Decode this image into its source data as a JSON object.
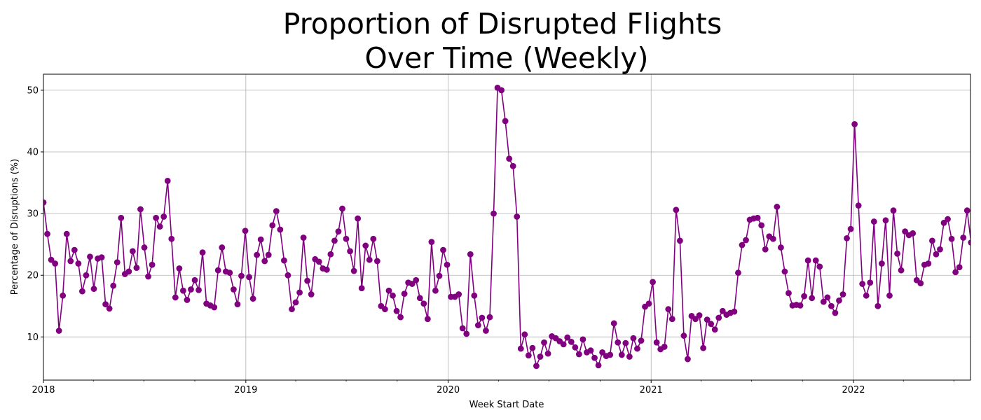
{
  "chart_data": {
    "type": "line",
    "title_lines": [
      "Proportion of Disrupted Flights",
      "Over Time (Weekly)"
    ],
    "xlabel": "Week Start Date",
    "ylabel": "Percentage of Disruptions (%)",
    "x_start": "2018-01-01",
    "x_end": "2022-07-31",
    "x_major_ticks": [
      {
        "date": "2018-01-01",
        "label": "2018"
      },
      {
        "date": "2019-01-01",
        "label": "2019"
      },
      {
        "date": "2020-01-01",
        "label": "2020"
      },
      {
        "date": "2021-01-01",
        "label": "2021"
      },
      {
        "date": "2022-01-01",
        "label": "2022"
      }
    ],
    "x_minor_ticks": [
      "2018-04-01",
      "2018-07-01",
      "2018-10-01",
      "2019-04-01",
      "2019-07-01",
      "2019-10-01",
      "2020-04-01",
      "2020-07-01",
      "2020-10-01",
      "2021-04-01",
      "2021-07-01",
      "2021-10-01",
      "2022-04-01",
      "2022-07-01"
    ],
    "ylim": [
      3.0,
      52.6
    ],
    "yticks": [
      10,
      20,
      30,
      40,
      50
    ],
    "grid": true,
    "line_color": "#800080",
    "marker": "circle",
    "series": [
      {
        "start": "2018-01-01",
        "interval_days": 7,
        "values": [
          31.8,
          26.7,
          22.5,
          21.9,
          11.0,
          16.7,
          26.7,
          22.3,
          24.1,
          21.9,
          17.4,
          20.0,
          23.0,
          17.8,
          22.7,
          22.9,
          15.3,
          14.6,
          18.3,
          22.1,
          29.3,
          20.2,
          20.6,
          23.9,
          21.2,
          30.7,
          24.5,
          19.8,
          21.7,
          29.3,
          27.9,
          29.5,
          35.3,
          25.9,
          16.4,
          21.1,
          17.5,
          16.0,
          17.7,
          19.2,
          17.6,
          23.7,
          15.4,
          15.1,
          14.8,
          20.8,
          24.5,
          20.6,
          20.4,
          17.7,
          15.3,
          19.9,
          27.2,
          19.7,
          16.2,
          23.3,
          25.8,
          22.3,
          23.3,
          28.1,
          30.4,
          27.4,
          22.4,
          20.0,
          14.5,
          15.6,
          17.2,
          26.1,
          19.1,
          16.9,
          22.6,
          22.2,
          21.1,
          20.9,
          23.4,
          25.6,
          27.1,
          30.8,
          25.9,
          23.9,
          20.7,
          29.2,
          17.9,
          24.8,
          22.5,
          25.9,
          22.3,
          15.0,
          14.5,
          17.5,
          16.7,
          14.2,
          13.2,
          17.0,
          18.8,
          18.6,
          19.2,
          16.3,
          15.4,
          12.9,
          25.4,
          17.5,
          19.9,
          24.1,
          21.7,
          16.5,
          16.5,
          16.9,
          11.4,
          10.5,
          23.4,
          16.7,
          11.9,
          13.1,
          11.0,
          13.2,
          30.0,
          50.4,
          50.0,
          45.0,
          38.9,
          37.7,
          29.5,
          8.1,
          10.4,
          7.0,
          8.2,
          5.3,
          6.8,
          9.1,
          7.3,
          10.1,
          9.8,
          9.3,
          8.8,
          9.9,
          9.2,
          8.3,
          7.2,
          9.6,
          7.5,
          7.8,
          6.6,
          5.4,
          7.5,
          6.9,
          7.1,
          12.2,
          9.1,
          7.1,
          9.0,
          6.8,
          9.8,
          8.1,
          9.4,
          14.9,
          15.4,
          18.9,
          9.1,
          8.0,
          8.4,
          14.5,
          12.9,
          30.6,
          25.6,
          10.2,
          6.4,
          13.4,
          12.9,
          13.5,
          8.2,
          12.8,
          12.1,
          11.2,
          13.1,
          14.2,
          13.6,
          13.9,
          14.1,
          20.4,
          24.9,
          25.7,
          29.0,
          29.2,
          29.3,
          28.1,
          24.2,
          26.3,
          25.9,
          31.1,
          24.5,
          20.6,
          17.1,
          15.1,
          15.2,
          15.1,
          16.6,
          22.4,
          16.3,
          22.4,
          21.4,
          15.7,
          16.4,
          15.0,
          13.9,
          15.9,
          16.9,
          26.0,
          27.5,
          44.5,
          31.3,
          18.6,
          16.7,
          18.8,
          28.7,
          15.0,
          21.9,
          28.9,
          16.7,
          30.5,
          23.5,
          20.8,
          27.1,
          26.5,
          26.8,
          19.2,
          18.7,
          21.7,
          21.9,
          25.6,
          23.4,
          24.2,
          28.5,
          29.1,
          25.9,
          20.5,
          21.3,
          26.1,
          30.5,
          25.3
        ]
      }
    ]
  }
}
